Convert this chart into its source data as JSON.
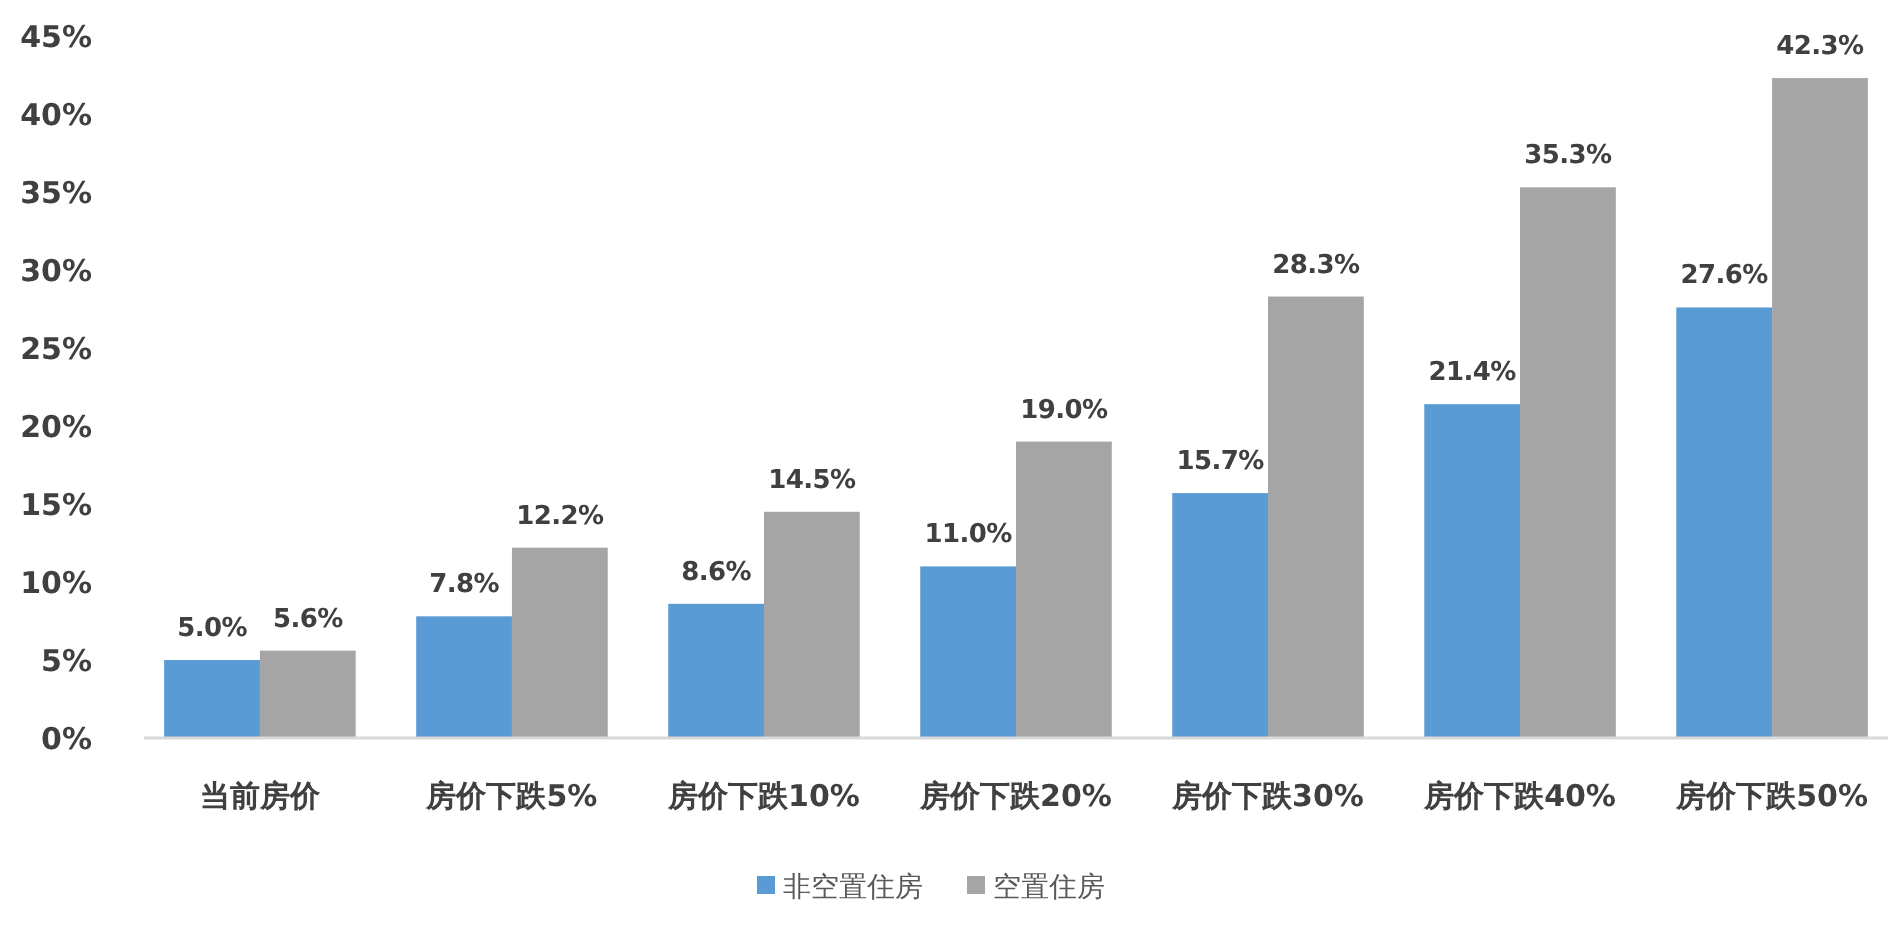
{
  "chart_data": {
    "type": "bar",
    "categories": [
      "当前房价",
      "房价下跌5%",
      "房价下跌10%",
      "房价下跌20%",
      "房价下跌30%",
      "房价下跌40%",
      "房价下跌50%"
    ],
    "series": [
      {
        "name": "非空置住房",
        "color": "#5b9bd5",
        "values": [
          5.0,
          7.8,
          8.6,
          11.0,
          15.7,
          21.4,
          27.6
        ],
        "value_labels": [
          "5.0%",
          "7.8%",
          "8.6%",
          "11.0%",
          "15.7%",
          "21.4%",
          "27.6%"
        ]
      },
      {
        "name": "空置住房",
        "color": "#a5a5a5",
        "values": [
          5.6,
          12.2,
          14.5,
          19.0,
          28.3,
          35.3,
          42.3
        ],
        "value_labels": [
          "5.6%",
          "12.2%",
          "14.5%",
          "19.0%",
          "28.3%",
          "35.3%",
          "42.3%"
        ]
      }
    ],
    "ylim": [
      0,
      45
    ],
    "yticks": [
      {
        "value": 0,
        "label": "0%"
      },
      {
        "value": 5,
        "label": "5%"
      },
      {
        "value": 10,
        "label": "10%"
      },
      {
        "value": 15,
        "label": "15%"
      },
      {
        "value": 20,
        "label": "20%"
      },
      {
        "value": 25,
        "label": "25%"
      },
      {
        "value": 30,
        "label": "30%"
      },
      {
        "value": 35,
        "label": "35%"
      },
      {
        "value": 40,
        "label": "40%"
      },
      {
        "value": 45,
        "label": "45%"
      }
    ],
    "grid": false,
    "legend": "bottom"
  }
}
